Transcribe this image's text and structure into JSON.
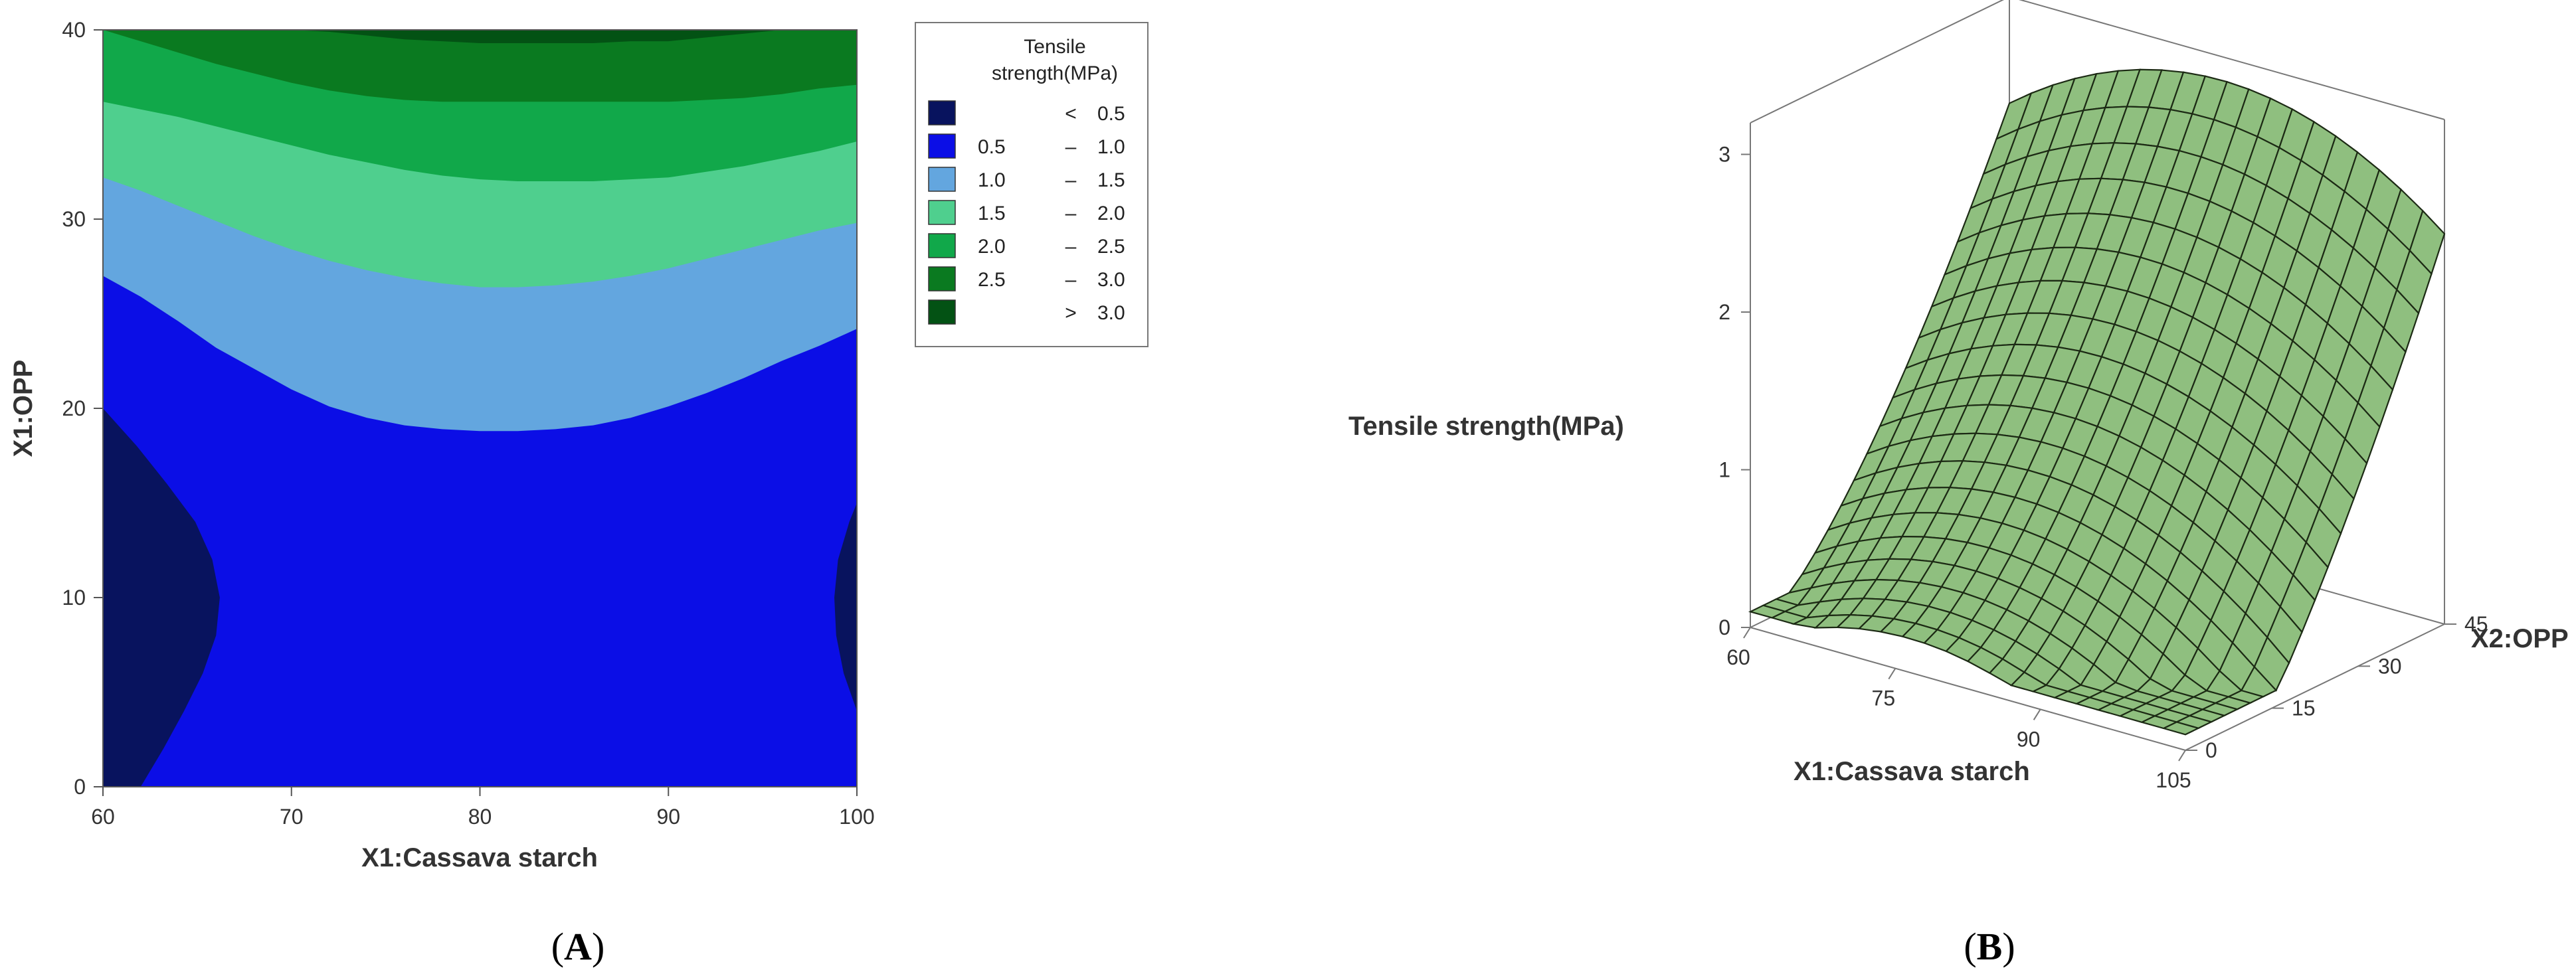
{
  "chart_data": [
    {
      "type": "contour",
      "panel_label": "A",
      "xlabel": "X1:Cassava starch",
      "ylabel": "X1:OPP",
      "xlim": [
        60,
        100
      ],
      "ylim": [
        0,
        40
      ],
      "xticks": [
        "60",
        "70",
        "80",
        "90",
        "100"
      ],
      "yticks": [
        "0",
        "10",
        "20",
        "30",
        "40"
      ],
      "legend": {
        "title": [
          "Tensile",
          "strength(MPa)"
        ],
        "position": "right",
        "entries": [
          {
            "lo": "",
            "sep": "<",
            "hi": "0.5",
            "color": "#08135e"
          },
          {
            "lo": "0.5",
            "sep": "–",
            "hi": "1.0",
            "color": "#0b0ee6"
          },
          {
            "lo": "1.0",
            "sep": "–",
            "hi": "1.5",
            "color": "#63a6df"
          },
          {
            "lo": "1.5",
            "sep": "–",
            "hi": "2.0",
            "color": "#4fcf8e"
          },
          {
            "lo": "2.0",
            "sep": "–",
            "hi": "2.5",
            "color": "#11a84a"
          },
          {
            "lo": "2.5",
            "sep": "–",
            "hi": "3.0",
            "color": "#0a7a20"
          },
          {
            "lo": "",
            "sep": ">",
            "hi": "3.0",
            "color": "#035214"
          }
        ]
      },
      "contours": {
        "x": [
          60,
          62,
          64,
          66,
          68,
          70,
          72,
          74,
          76,
          78,
          80,
          82,
          84,
          86,
          88,
          90,
          92,
          94,
          96,
          98,
          100
        ],
        "level_1_0_y": [
          27.0,
          25.9,
          24.6,
          23.2,
          22.1,
          21.0,
          20.1,
          19.5,
          19.1,
          18.9,
          18.8,
          18.8,
          18.9,
          19.1,
          19.5,
          20.1,
          20.8,
          21.6,
          22.5,
          23.3,
          24.2
        ],
        "level_1_5_y": [
          32.2,
          31.5,
          30.7,
          29.9,
          29.1,
          28.4,
          27.8,
          27.3,
          26.9,
          26.6,
          26.4,
          26.4,
          26.5,
          26.7,
          27.0,
          27.4,
          27.9,
          28.4,
          28.9,
          29.4,
          29.8
        ],
        "level_2_0_y": [
          36.2,
          35.8,
          35.4,
          34.9,
          34.4,
          33.9,
          33.4,
          33.0,
          32.6,
          32.3,
          32.1,
          32.0,
          32.0,
          32.0,
          32.1,
          32.2,
          32.5,
          32.8,
          33.2,
          33.6,
          34.1
        ],
        "level_2_5_y": [
          40.0,
          39.4,
          38.8,
          38.2,
          37.7,
          37.2,
          36.8,
          36.5,
          36.3,
          36.2,
          36.2,
          36.2,
          36.2,
          36.2,
          36.2,
          36.2,
          36.3,
          36.4,
          36.6,
          36.9,
          37.1
        ],
        "level_3_0_y": [
          40.0,
          40.0,
          40.0,
          40.0,
          40.0,
          40.0,
          39.9,
          39.7,
          39.5,
          39.4,
          39.3,
          39.3,
          39.3,
          39.3,
          39.4,
          39.4,
          39.6,
          39.8,
          40.0,
          40.0,
          40.0
        ],
        "level_0_5_left_x": [
          [
            0,
            62.0
          ],
          [
            2,
            63.2
          ],
          [
            4,
            64.3
          ],
          [
            6,
            65.3
          ],
          [
            8,
            66.0
          ],
          [
            10,
            66.2
          ],
          [
            12,
            65.8
          ],
          [
            14,
            64.9
          ],
          [
            16,
            63.4
          ],
          [
            18,
            61.8
          ],
          [
            20,
            60.0
          ]
        ],
        "level_0_5_right_x": [
          [
            4,
            100.0
          ],
          [
            6,
            99.3
          ],
          [
            8,
            98.9
          ],
          [
            10,
            98.8
          ],
          [
            12,
            99.0
          ],
          [
            14,
            99.6
          ],
          [
            15,
            100.0
          ]
        ]
      }
    },
    {
      "type": "surface",
      "panel_label": "B",
      "xlabel": "X1:Cassava starch",
      "ylabel": "X2:OPP",
      "zlabel": "Tensile strength(MPa)",
      "xticks": [
        "60",
        "75",
        "90",
        "105"
      ],
      "yticks": [
        "0",
        "15",
        "30",
        "45"
      ],
      "zticks": [
        "0",
        "1",
        "2",
        "3"
      ],
      "xlim": [
        60,
        105
      ],
      "ylim": [
        0,
        45
      ],
      "zlim": [
        0,
        3.2
      ],
      "surface_color": "#8fbf7f",
      "grid_color": "#1c2a14",
      "model": {
        "x_center": 82,
        "tensile_at_min": [
          0.45,
          0.25
        ],
        "tensile_at_max": [
          3.05,
          2.75
        ]
      }
    }
  ]
}
